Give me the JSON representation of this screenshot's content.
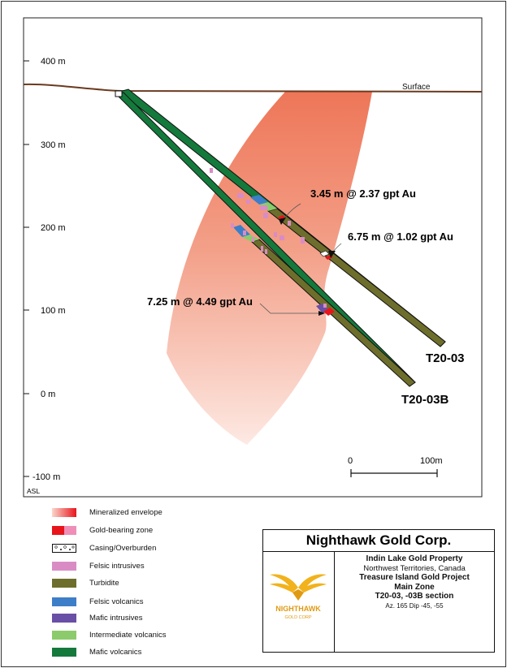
{
  "section": {
    "elevation_labels": [
      "400 m",
      "300 m",
      "200 m",
      "100 m",
      "0 m",
      "-100 m"
    ],
    "datum_label": "ASL",
    "surface_label": "Surface",
    "scale_bar": {
      "start_label": "0",
      "end_label": "100m"
    },
    "drillholes": [
      {
        "name": "T20-03",
        "dip_deg": -45
      },
      {
        "name": "T20-03B",
        "dip_deg": -55
      }
    ],
    "intercepts": [
      "3.45 m @ 2.37 gpt Au",
      "6.75 m @ 1.02 gpt Au",
      "7.25 m @ 4.49 gpt Au"
    ],
    "colors": {
      "mineralized_envelope": "#ef7a5f",
      "gold_zone_red": "#e8141b",
      "gold_zone_pink": "#ef8fb8",
      "felsic_intrusives": "#d98cc4",
      "turbidite": "#6e6e2c",
      "felsic_volcanics": "#3d7ec8",
      "mafic_intrusives": "#6a4fa6",
      "intermediate_volcanics": "#8ccb6b",
      "mafic_volcanics": "#137a3c",
      "surface_line": "#6b3a1e"
    }
  },
  "legend": {
    "items": [
      {
        "label": "Mineralized envelope",
        "swatch": "envelope"
      },
      {
        "label": "Gold-bearing zone",
        "swatch": "gold"
      },
      {
        "label": "Casing/Overburden",
        "swatch": "casing"
      },
      {
        "label": "Felsic intrusives",
        "swatch": "felsic_intrusives"
      },
      {
        "label": "Turbidite",
        "swatch": "turbidite"
      },
      {
        "label": "Felsic volcanics",
        "swatch": "felsic_volcanics"
      },
      {
        "label": "Mafic intrusives",
        "swatch": "mafic_intrusives"
      },
      {
        "label": "Intermediate volcanics",
        "swatch": "intermediate_volcanics"
      },
      {
        "label": "Mafic volcanics",
        "swatch": "mafic_volcanics"
      }
    ]
  },
  "title_block": {
    "company": "Nighthawk Gold Corp.",
    "logo_word": "NIGHTHAWK",
    "logo_sub": "GOLD CORP",
    "property": "Indin Lake Gold Property",
    "location": "Northwest Territories, Canada",
    "project": "Treasure Island Gold Project",
    "zone": "Main Zone",
    "section_name": "T20-03, -03B section",
    "orientation": "Az. 165  Dip -45, -55"
  }
}
